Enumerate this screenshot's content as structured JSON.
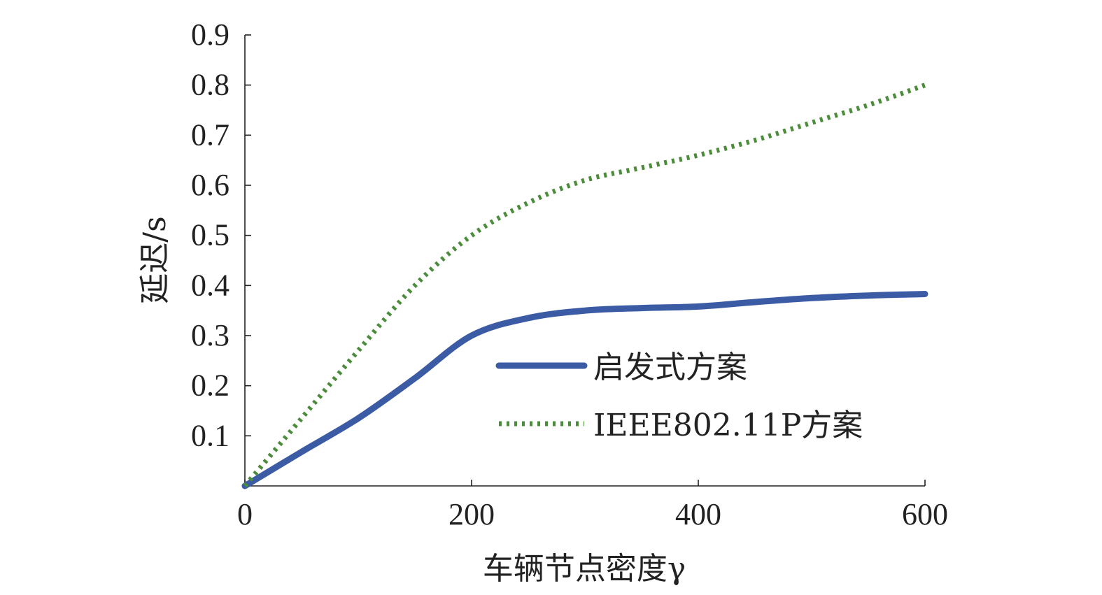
{
  "chart_data": {
    "type": "line",
    "title": "",
    "xlabel": "车辆节点密度γ",
    "ylabel": "延迟/s",
    "xlim": [
      0,
      600
    ],
    "ylim": [
      0,
      0.9
    ],
    "x_ticks": [
      0,
      200,
      400,
      600
    ],
    "x_tick_labels": [
      "0",
      "200",
      "400",
      "600"
    ],
    "y_ticks": [
      0.1,
      0.2,
      0.3,
      0.4,
      0.5,
      0.6,
      0.7,
      0.8,
      0.9
    ],
    "y_tick_labels": [
      "0.1",
      "0.2",
      "0.3",
      "0.4",
      "0.5",
      "0.6",
      "0.7",
      "0.8",
      "0.9"
    ],
    "grid": false,
    "legend_position": "lower-right",
    "series": [
      {
        "name": "启发式方案",
        "color": "#3b5ba5",
        "style": "solid",
        "x": [
          0,
          50,
          100,
          150,
          200,
          250,
          300,
          350,
          400,
          450,
          500,
          550,
          600
        ],
        "y": [
          0,
          0.068,
          0.135,
          0.215,
          0.3,
          0.335,
          0.35,
          0.355,
          0.358,
          0.367,
          0.375,
          0.38,
          0.383
        ]
      },
      {
        "name": "IEEE802.11P方案",
        "color": "#4a8c3a",
        "style": "dotted",
        "x": [
          0,
          50,
          100,
          150,
          200,
          250,
          300,
          350,
          400,
          450,
          500,
          550,
          600
        ],
        "y": [
          0,
          0.135,
          0.27,
          0.4,
          0.5,
          0.565,
          0.61,
          0.635,
          0.66,
          0.69,
          0.725,
          0.76,
          0.8
        ]
      }
    ]
  }
}
